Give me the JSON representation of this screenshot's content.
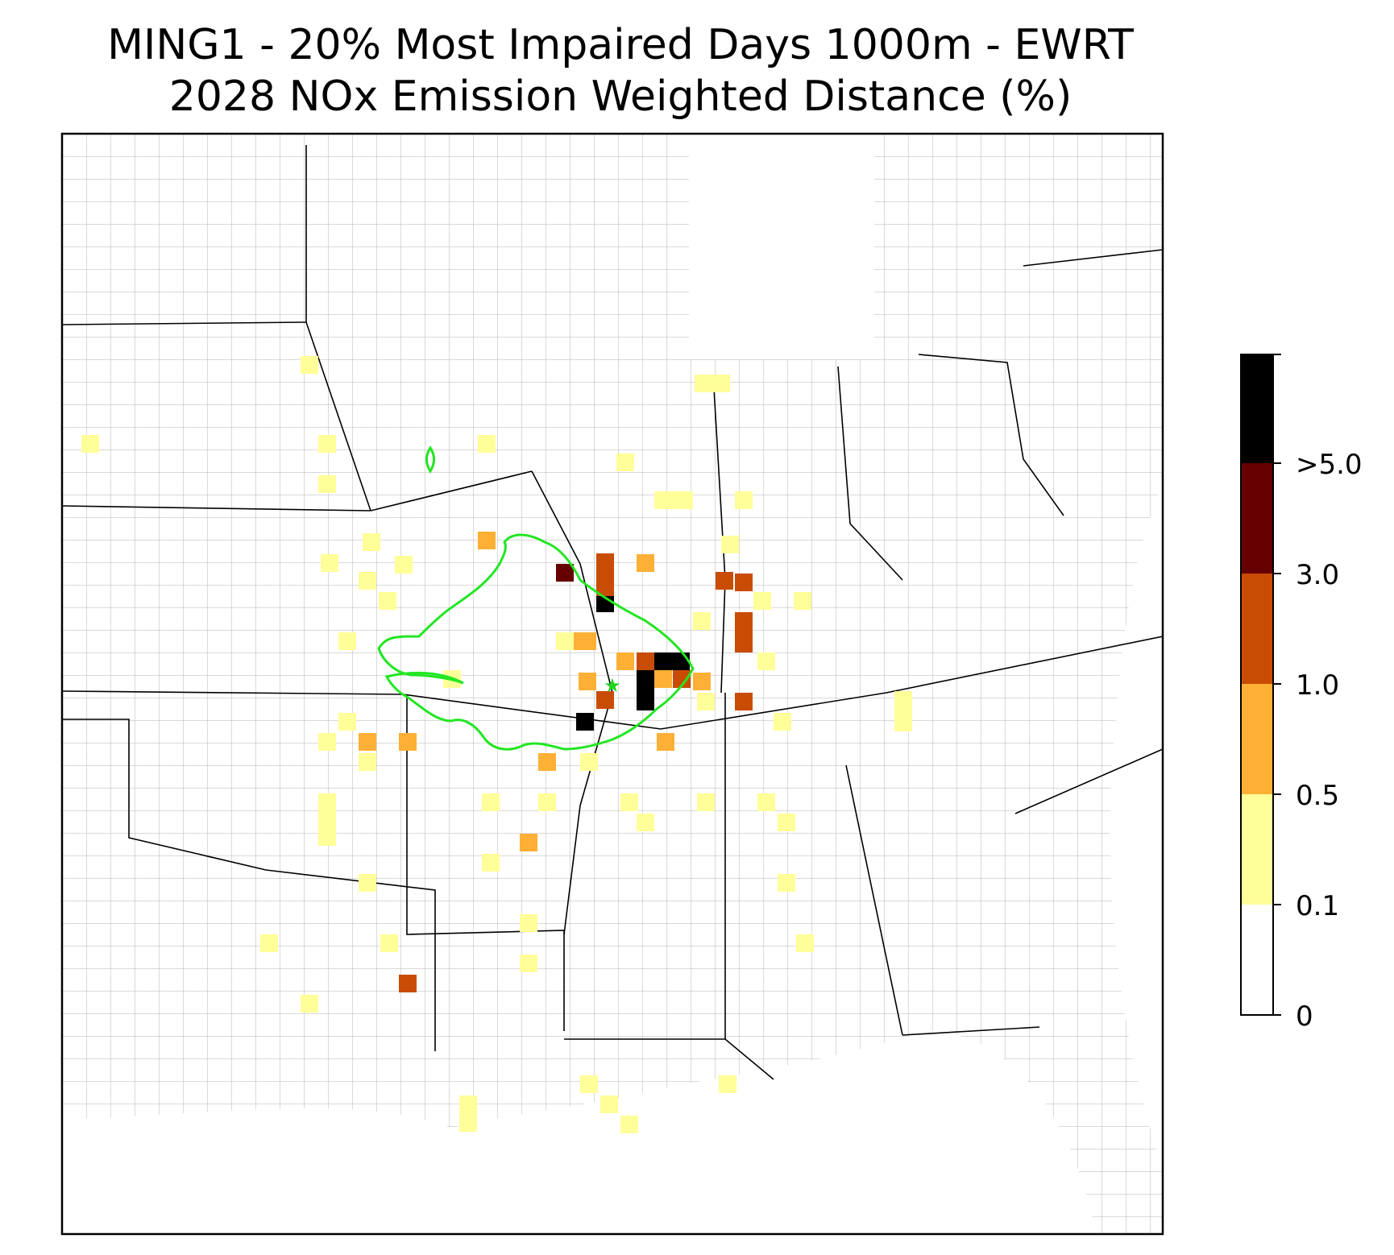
{
  "title": {
    "line1": "MING1 - 20% Most Impaired Days 1000m - EWRT",
    "line2": "2028 NOx Emission Weighted Distance (%)"
  },
  "colorbar": {
    "labels": [
      "0",
      "0.1",
      "0.5",
      "1.0",
      "3.0",
      ">5.0"
    ],
    "colors": [
      "#ffffff",
      "#ffff99",
      "#fdb035",
      "#c94c04",
      "#660000",
      "#000000"
    ]
  },
  "map": {
    "region": "Central and eastern United States",
    "site_marker_color": "#1fd31f",
    "contour_color": "#22e622",
    "state_border_color": "#000000",
    "county_border_color": "#a8a8a8"
  }
}
